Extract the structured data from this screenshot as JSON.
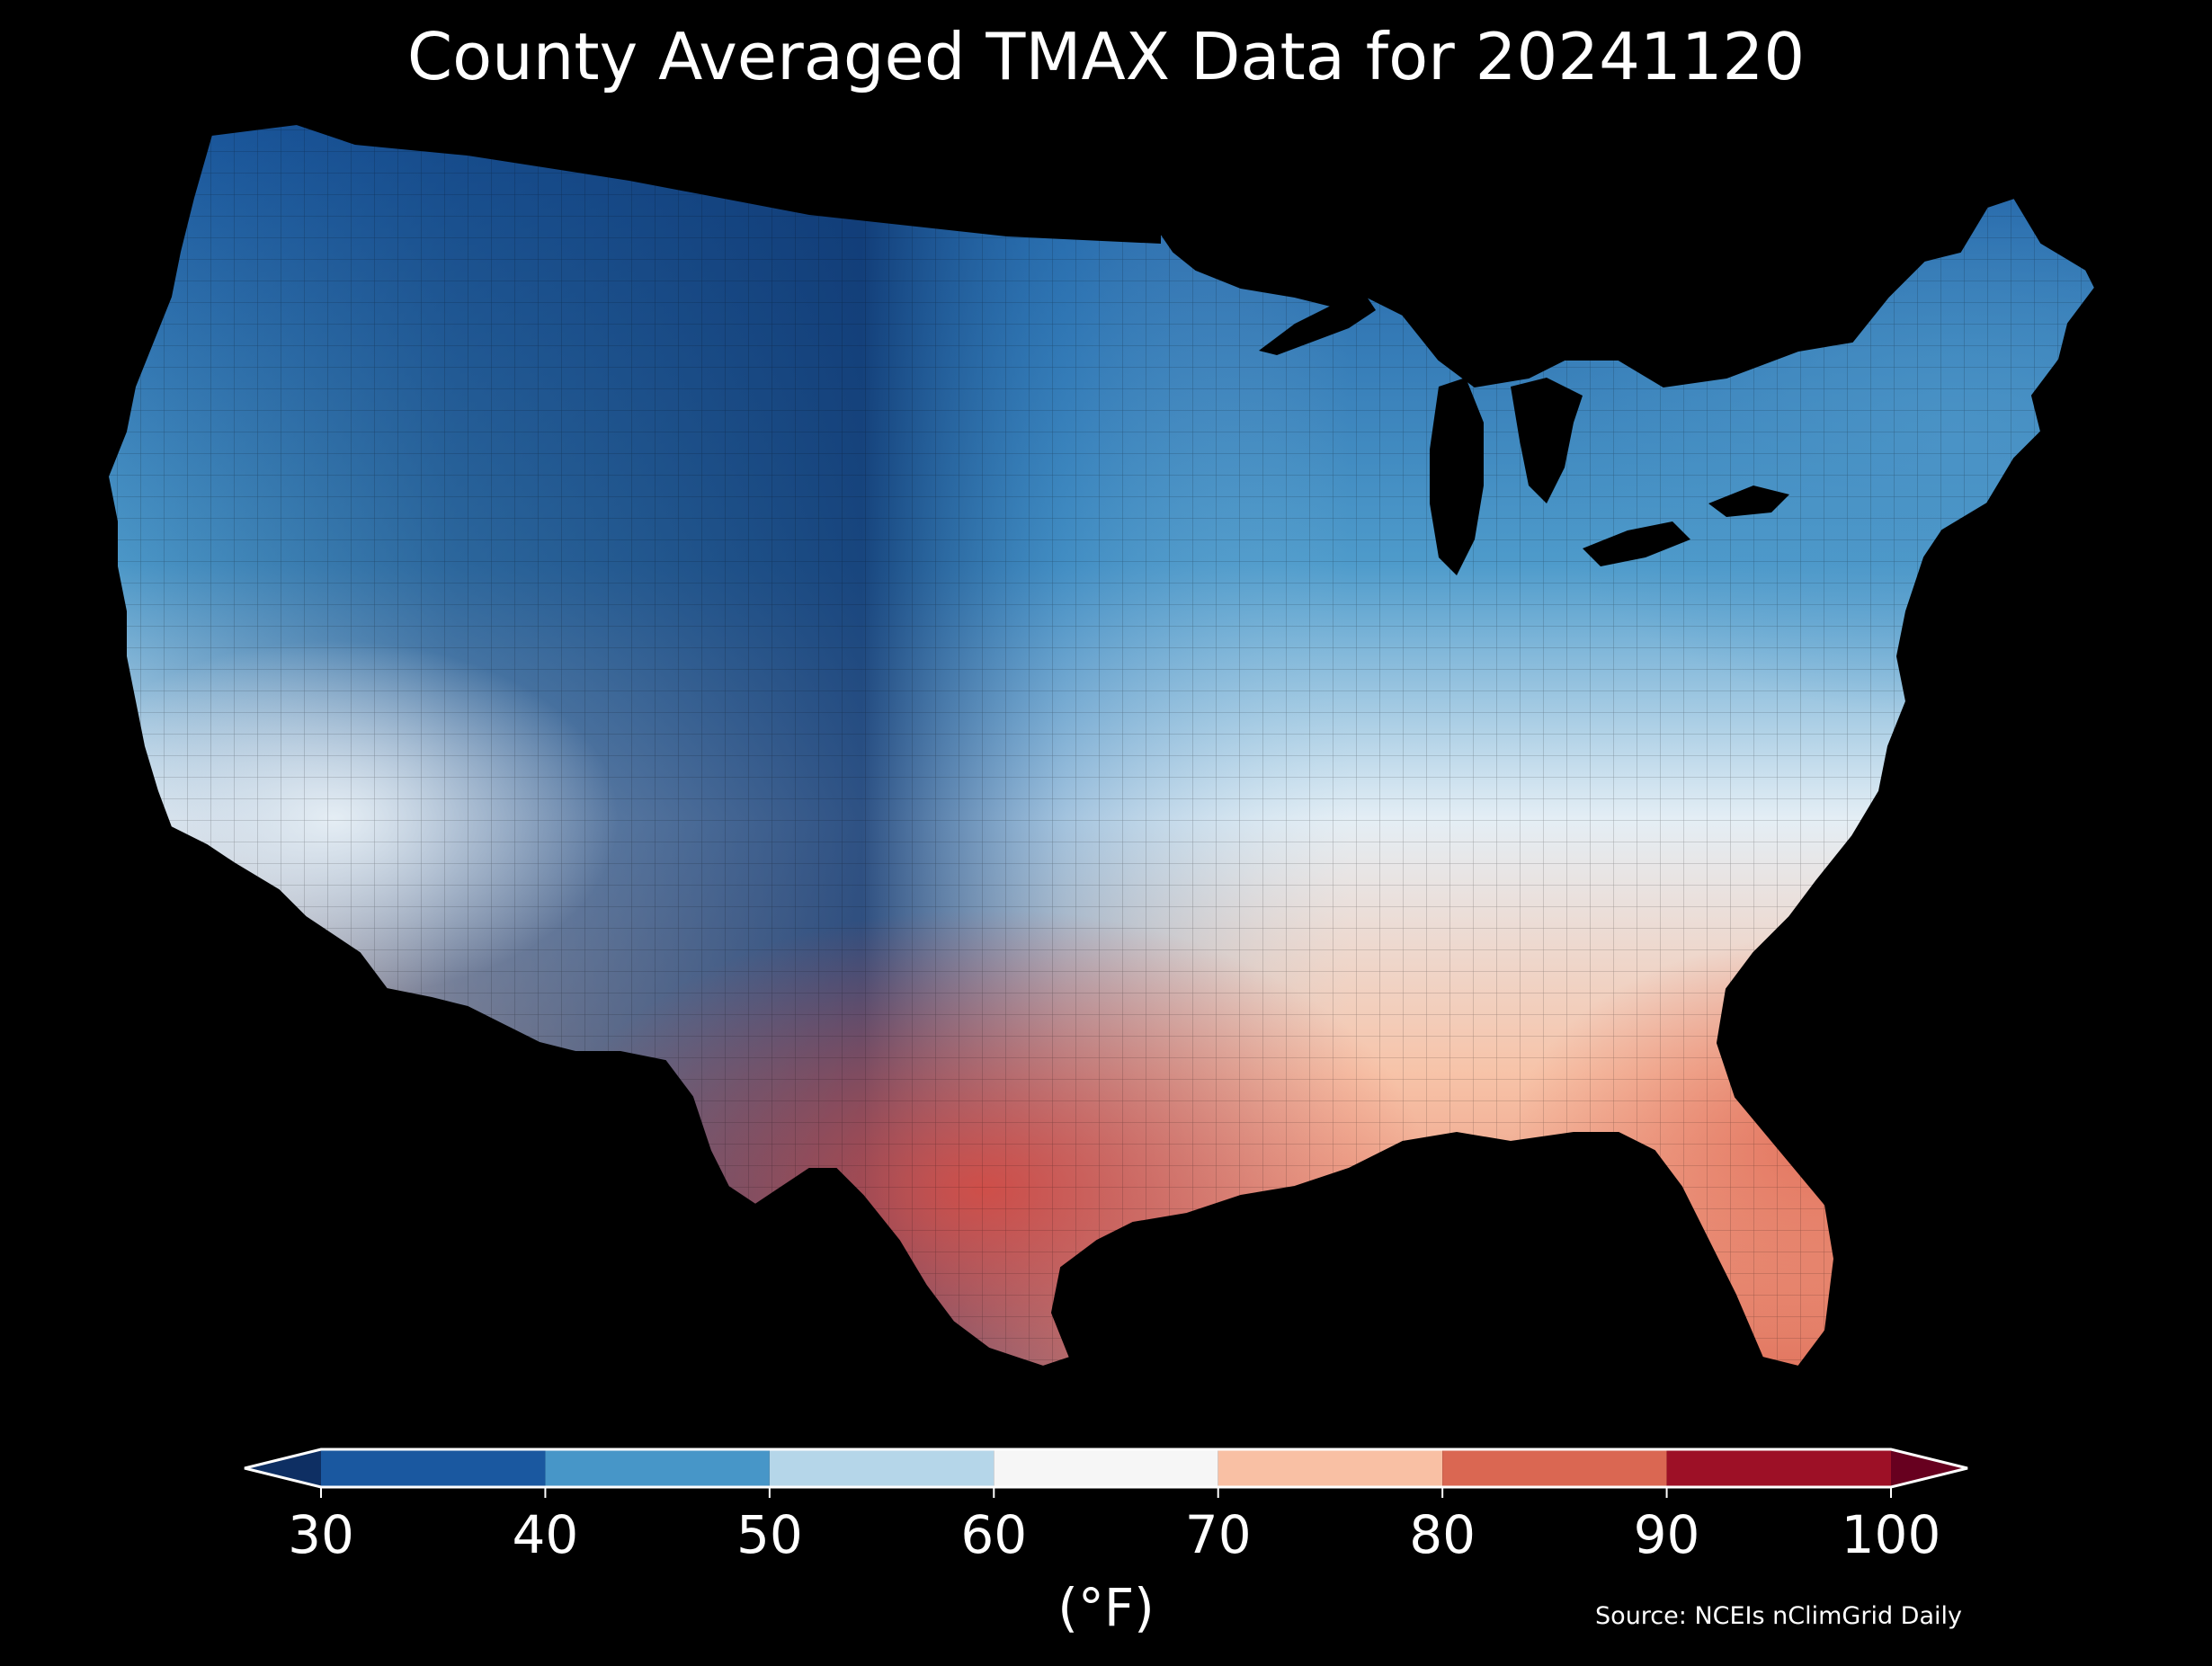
{
  "map": {
    "title": "County Averaged TMAX Data for 20241120"
  },
  "legend": {
    "unit_label": "(°F)",
    "ticks": [
      "30",
      "40",
      "50",
      "60",
      "70",
      "80",
      "90",
      "100"
    ],
    "bins": [
      {
        "min": 30,
        "max": 40,
        "color": "#1a58a0"
      },
      {
        "min": 40,
        "max": 50,
        "color": "#4796c8"
      },
      {
        "min": 50,
        "max": 60,
        "color": "#b5d6e9"
      },
      {
        "min": 60,
        "max": 70,
        "color": "#f6f6f6"
      },
      {
        "min": 70,
        "max": 80,
        "color": "#f9c0a4"
      },
      {
        "min": 80,
        "max": 90,
        "color": "#da6752"
      },
      {
        "min": 90,
        "max": 100,
        "color": "#9d1026"
      }
    ],
    "under_color": "#0e2f63",
    "over_color": "#67001f"
  },
  "source": "Source: NCEIs nClimGrid Daily"
}
